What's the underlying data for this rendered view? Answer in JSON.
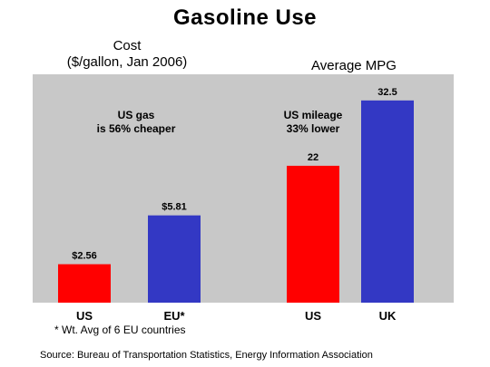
{
  "title": "Gasoline Use",
  "footnote": "* Wt. Avg of 6 EU countries",
  "source": "Source: Bureau of Transportation Statistics, Energy Information Association",
  "colors": {
    "plot_background": "#c8c8c8",
    "us": "#ff0000",
    "eu_uk": "#3338c4"
  },
  "chart_data": [
    {
      "type": "bar",
      "title": "Cost\n($/gallon, Jan 2006)",
      "title_lines": [
        "Cost",
        "($/gallon, Jan 2006)"
      ],
      "categories": [
        "US",
        "EU*"
      ],
      "values": [
        2.56,
        5.81
      ],
      "value_labels": [
        "$2.56",
        "$5.81"
      ],
      "annotation_lines": [
        "US gas",
        "is 56% cheaper"
      ],
      "ylim": [
        0,
        15.2
      ],
      "grid": false
    },
    {
      "type": "bar",
      "title": "Average MPG",
      "title_lines": [
        "Average MPG"
      ],
      "categories": [
        "US",
        "UK"
      ],
      "values": [
        22,
        32.5
      ],
      "value_labels": [
        "22",
        "32.5"
      ],
      "annotation_lines": [
        "US mileage",
        "33% lower"
      ],
      "ylim": [
        0,
        36.7
      ],
      "grid": false
    }
  ]
}
